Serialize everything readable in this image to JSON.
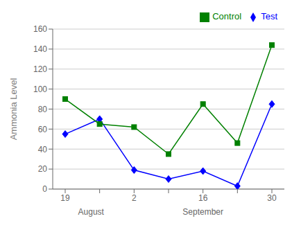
{
  "chart_data": {
    "type": "line",
    "categories": [
      "19",
      null,
      "2",
      null,
      "16",
      null,
      "30"
    ],
    "series": [
      {
        "name": "Test",
        "color": "#0000FF",
        "marker": "diamond",
        "values": [
          55,
          70,
          19,
          10,
          18,
          3,
          85
        ]
      },
      {
        "name": "Control",
        "color": "#008000",
        "marker": "square",
        "values": [
          90,
          65,
          62,
          35,
          85,
          46,
          144
        ]
      }
    ],
    "ylabel": "Ammonia Level",
    "ylim": [
      0,
      160
    ],
    "yticks": [
      0,
      20,
      40,
      60,
      80,
      100,
      120,
      140,
      160
    ],
    "grid": true,
    "legend": "upper right",
    "annotations": [
      {
        "text": "August",
        "x": 0.75
      },
      {
        "text": "September",
        "x": 4.0
      }
    ]
  }
}
